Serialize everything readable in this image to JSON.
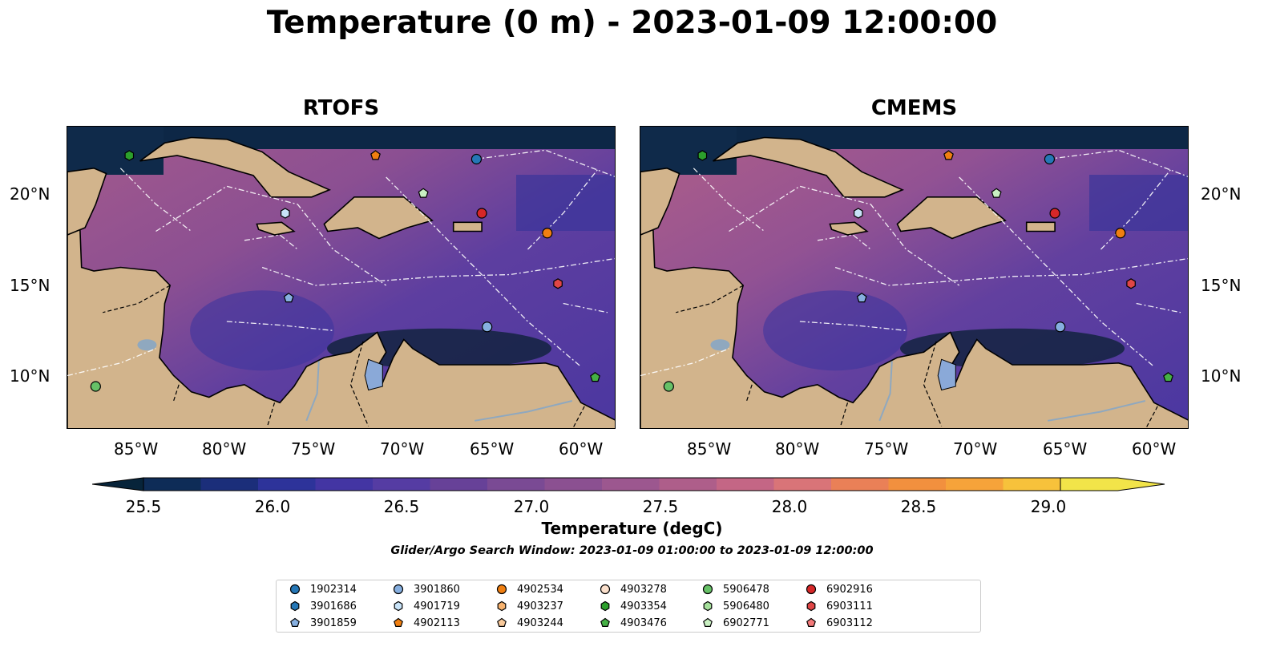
{
  "title": "Temperature (0 m) - 2023-01-09 12:00:00",
  "panels": [
    {
      "title": "RTOFS"
    },
    {
      "title": "CMEMS"
    }
  ],
  "lon_ticks": [
    "85°W",
    "80°W",
    "75°W",
    "70°W",
    "65°W",
    "60°W"
  ],
  "lat_ticks": [
    "20°N",
    "15°N",
    "10°N"
  ],
  "map_extent": {
    "lon": [
      -89,
      -58
    ],
    "lat": [
      7,
      23.8
    ]
  },
  "colorbar": {
    "label": "Temperature (degC)",
    "ticks": [
      "25.5",
      "26.0",
      "26.5",
      "27.0",
      "27.5",
      "28.0",
      "28.5",
      "29.0"
    ],
    "range": [
      25.5,
      29.0
    ],
    "extend": "both",
    "colors": [
      "#07243a",
      "#0e2c57",
      "#1b2e7a",
      "#2d339a",
      "#4335a3",
      "#553ca3",
      "#674198",
      "#7a4a94",
      "#8b5091",
      "#9c578f",
      "#ae5e8a",
      "#c46685",
      "#d97478",
      "#ea8057",
      "#f2903e",
      "#f6a33a",
      "#f7c23b",
      "#f2e449"
    ]
  },
  "search_window": "Glider/Argo Search Window: 2023-01-09 01:00:00 to 2023-01-09 12:00:00",
  "legend": [
    {
      "id": "1902314",
      "marker": "circle",
      "color": "#2577b6"
    },
    {
      "id": "3901686",
      "marker": "hexagon",
      "color": "#2577b6"
    },
    {
      "id": "3901859",
      "marker": "pentagon",
      "color": "#86afe0"
    },
    {
      "id": "3901860",
      "marker": "circle",
      "color": "#86afe0"
    },
    {
      "id": "4901719",
      "marker": "hexagon",
      "color": "#c8e3f8"
    },
    {
      "id": "4902113",
      "marker": "pentagon",
      "color": "#f07f11"
    },
    {
      "id": "4902534",
      "marker": "circle",
      "color": "#f07f11"
    },
    {
      "id": "4903237",
      "marker": "hexagon",
      "color": "#f8b36f"
    },
    {
      "id": "4903244",
      "marker": "pentagon",
      "color": "#f8c99a"
    },
    {
      "id": "4903278",
      "marker": "circle",
      "color": "#fbe0cc"
    },
    {
      "id": "4903354",
      "marker": "hexagon",
      "color": "#2ca02c"
    },
    {
      "id": "4903476",
      "marker": "pentagon",
      "color": "#45b045"
    },
    {
      "id": "5906478",
      "marker": "circle",
      "color": "#67c167"
    },
    {
      "id": "5906480",
      "marker": "hexagon",
      "color": "#a5e09b"
    },
    {
      "id": "6902771",
      "marker": "pentagon",
      "color": "#c9f0c2"
    },
    {
      "id": "6902916",
      "marker": "circle",
      "color": "#d62728"
    },
    {
      "id": "6903111",
      "marker": "hexagon",
      "color": "#e04646"
    },
    {
      "id": "6903112",
      "marker": "pentagon",
      "color": "#f47a7a"
    }
  ],
  "floats": [
    {
      "id": "4903354",
      "lon": -85.5,
      "lat": 22.2
    },
    {
      "id": "4902113",
      "lon": -71.6,
      "lat": 22.2
    },
    {
      "id": "1902314",
      "lon": -65.9,
      "lat": 22.0
    },
    {
      "id": "6902771",
      "lon": -68.9,
      "lat": 20.1
    },
    {
      "id": "4901719",
      "lon": -76.7,
      "lat": 19.0
    },
    {
      "id": "6902916",
      "lon": -65.6,
      "lat": 19.0
    },
    {
      "id": "4902534",
      "lon": -61.9,
      "lat": 17.9
    },
    {
      "id": "6903111",
      "lon": -61.3,
      "lat": 15.1
    },
    {
      "id": "3901859",
      "lon": -76.5,
      "lat": 14.3
    },
    {
      "id": "3901860",
      "lon": -65.3,
      "lat": 12.7
    },
    {
      "id": "5906478",
      "lon": -87.4,
      "lat": 9.4
    },
    {
      "id": "4903476",
      "lon": -59.2,
      "lat": 9.9
    }
  ]
}
